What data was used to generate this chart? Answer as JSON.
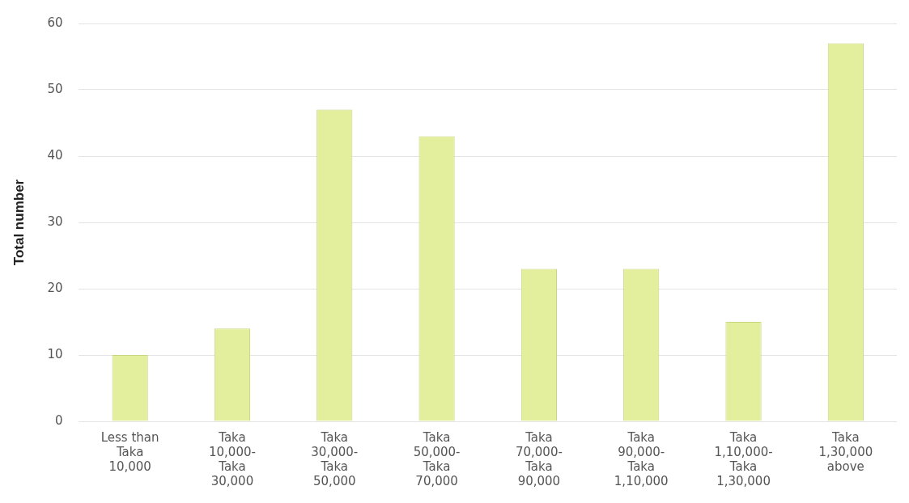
{
  "chart_data": {
    "type": "bar",
    "ylabel": "Total number",
    "categories": [
      "Less than Taka 10,000",
      "Taka 10,000-Taka 30,000",
      "Taka 30,000-Taka 50,000",
      "Taka 50,000-Taka 70,000",
      "Taka 70,000-Taka 90,000",
      "Taka 90,000-Taka 1,10,000",
      "Taka 1,10,000-Taka 1,30,000",
      "Taka 1,30,000 above"
    ],
    "values": [
      10,
      14,
      47,
      43,
      23,
      23,
      15,
      57
    ],
    "color": "#e3ef9c",
    "ylim": [
      0,
      60
    ],
    "yticks": [
      0,
      10,
      20,
      30,
      40,
      50,
      60
    ],
    "grid": "y",
    "legend": false
  }
}
